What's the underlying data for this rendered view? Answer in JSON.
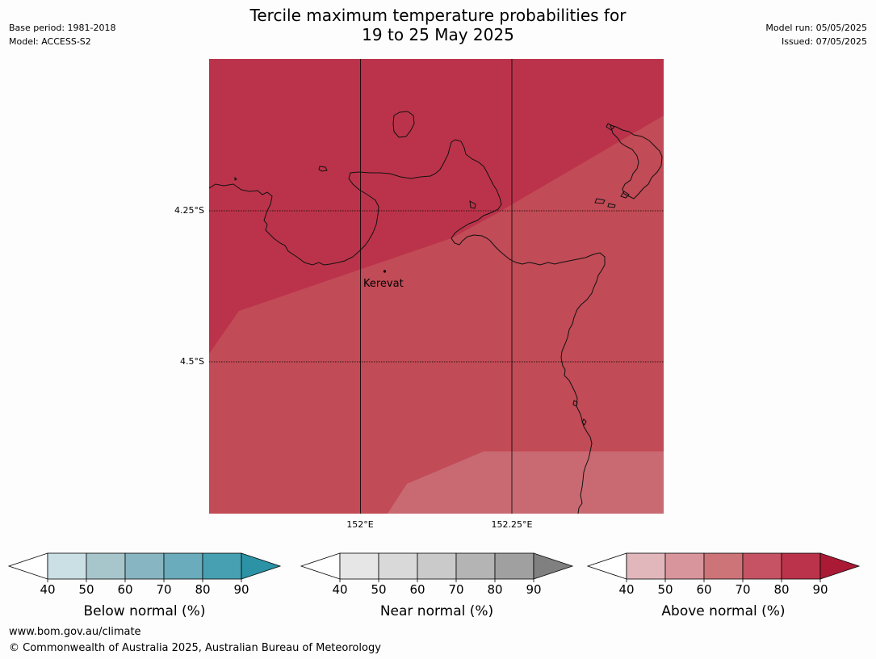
{
  "header": {
    "title_line1": "Tercile maximum temperature probabilities for",
    "title_line2": "19 to 25 May 2025",
    "base_period": "Base period: 1981-2018",
    "model": "Model: ACCESS-S2",
    "model_run": "Model run: 05/05/2025",
    "issued": "Issued: 07/05/2025"
  },
  "map": {
    "lat_labels": [
      "4.25°S",
      "4.5°S"
    ],
    "lon_labels": [
      "152°E",
      "152.25°E"
    ],
    "place_label": "Kerevat",
    "colors": {
      "above_80_90": "#bb334a",
      "above_70_80": "#c14b56",
      "above_60_70": "#c96a73",
      "coastline": "#111111",
      "gridline": "#000000"
    }
  },
  "colorbars": [
    {
      "label": "Below normal (%)",
      "ticks": [
        "40",
        "50",
        "60",
        "70",
        "80",
        "90"
      ],
      "colors": [
        "#cae0e5",
        "#a7c6cc",
        "#88b5c2",
        "#6aacbb",
        "#46a0b1"
      ],
      "low_arrow_color": "#ffffff",
      "high_arrow_color": "#2b93a5"
    },
    {
      "label": "Near normal (%)",
      "ticks": [
        "40",
        "50",
        "60",
        "70",
        "80",
        "90"
      ],
      "colors": [
        "#e6e6e6",
        "#d9d9d9",
        "#cacaca",
        "#b4b4b4",
        "#a0a0a0"
      ],
      "low_arrow_color": "#ffffff",
      "high_arrow_color": "#808080"
    },
    {
      "label": "Above normal (%)",
      "ticks": [
        "40",
        "50",
        "60",
        "70",
        "80",
        "90"
      ],
      "colors": [
        "#e2b7bc",
        "#d8959c",
        "#cd7479",
        "#c65363",
        "#bb334a"
      ],
      "low_arrow_color": "#ffffff",
      "high_arrow_color": "#ab1a35"
    }
  ],
  "footer": {
    "website": "www.bom.gov.au/climate",
    "copyright": "© Commonwealth of Australia 2025, Australian Bureau of Meteorology"
  }
}
